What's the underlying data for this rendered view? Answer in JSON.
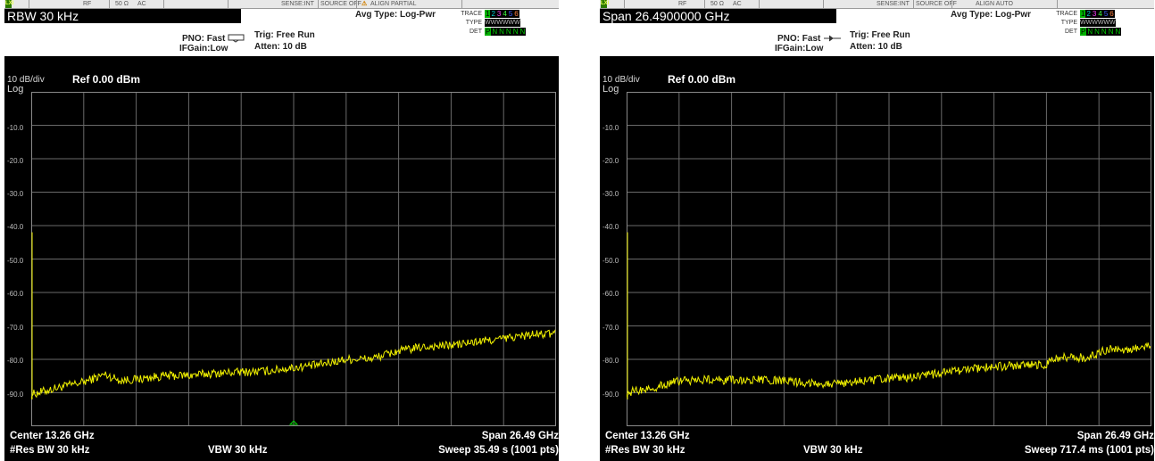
{
  "panels": [
    {
      "topbar": {
        "rf": "RF",
        "ohm": "50 Ω",
        "ac": "AC",
        "sense": "SENSE:INT",
        "source": "SOURCE OFF",
        "align": "ALIGN PARTIAL",
        "align_warning": true
      },
      "title": "RBW 30 kHz",
      "pno": "PNO: Fast",
      "ifgain": "IFGain:Low",
      "trig": "Trig: Free Run",
      "atten": "Atten: 10 dB",
      "avg_type": "Avg Type: Log-Pwr",
      "trace_label": "TRACE",
      "type_label": "TYPE",
      "det_label": "DET",
      "trace_numbers": [
        "1",
        "2",
        "3",
        "4",
        "5",
        "6"
      ],
      "type_values": "WWWWWW",
      "det_values": [
        "P",
        "N",
        "N",
        "N",
        "N",
        "N"
      ],
      "scale": "10 dB/div",
      "scale_type": "Log",
      "ref": "Ref 0.00 dBm",
      "y_labels": [
        "-10.0",
        "-20.0",
        "-30.0",
        "-40.0",
        "-50.0",
        "-60.0",
        "-70.0",
        "-80.0",
        "-90.0"
      ],
      "center": "Center 13.26 GHz",
      "span": "Span 26.49 GHz",
      "res_bw": "#Res BW 30 kHz",
      "vbw": "VBW 30 kHz",
      "sweep": "Sweep  35.49 s (1001 pts)",
      "trace_color": "#f0f000",
      "marker_shown": true,
      "chart_data": {
        "type": "line",
        "ylim": [
          -100,
          0
        ],
        "y_unit": "dBm",
        "series": [
          {
            "points": [
              [
                0,
                -90.5
              ],
              [
                0.05,
                -88.5
              ],
              [
                0.1,
                -86.8
              ],
              [
                0.14,
                -84.5
              ],
              [
                0.17,
                -86.3
              ],
              [
                0.2,
                -86
              ],
              [
                0.25,
                -85
              ],
              [
                0.3,
                -84.8
              ],
              [
                0.35,
                -84.2
              ],
              [
                0.4,
                -83.8
              ],
              [
                0.45,
                -83.5
              ],
              [
                0.5,
                -82.5
              ],
              [
                0.55,
                -81.6
              ],
              [
                0.6,
                -80
              ],
              [
                0.65,
                -79.8
              ],
              [
                0.7,
                -77.5
              ],
              [
                0.75,
                -76.3
              ],
              [
                0.8,
                -75.8
              ],
              [
                0.85,
                -74.8
              ],
              [
                0.9,
                -73.8
              ],
              [
                0.95,
                -72.7
              ],
              [
                1,
                -72.3
              ]
            ]
          }
        ]
      }
    },
    {
      "topbar": {
        "rf": "RF",
        "ohm": "50 Ω",
        "ac": "AC",
        "sense": "SENSE:INT",
        "source": "SOURCE OFF",
        "align": "ALIGN AUTO",
        "align_warning": false
      },
      "title": "Span 26.4900000 GHz",
      "pno": "PNO: Fast",
      "ifgain": "IFGain:Low",
      "trig": "Trig: Free Run",
      "atten": "Atten: 10 dB",
      "avg_type": "Avg Type: Log-Pwr",
      "trace_label": "TRACE",
      "type_label": "TYPE",
      "det_label": "DET",
      "trace_numbers": [
        "1",
        "2",
        "3",
        "4",
        "5",
        "6"
      ],
      "type_values": "WWWWWW",
      "det_values": [
        "P",
        "N",
        "N",
        "N",
        "N",
        "N"
      ],
      "scale": "10 dB/div",
      "scale_type": "Log",
      "ref": "Ref 0.00 dBm",
      "y_labels": [
        "-10.0",
        "-20.0",
        "-30.0",
        "-40.0",
        "-50.0",
        "-60.0",
        "-70.0",
        "-80.0",
        "-90.0"
      ],
      "center": "Center 13.26 GHz",
      "span": "Span 26.49 GHz",
      "res_bw": "#Res BW 30 kHz",
      "vbw": "VBW 30 kHz",
      "sweep": "Sweep  717.4 ms (1001 pts)",
      "trace_color": "#f0f000",
      "marker_shown": false,
      "chart_data": {
        "type": "line",
        "ylim": [
          -100,
          0
        ],
        "y_unit": "dBm",
        "series": [
          {
            "points": [
              [
                0,
                -90
              ],
              [
                0.05,
                -88.5
              ],
              [
                0.1,
                -86.5
              ],
              [
                0.15,
                -86
              ],
              [
                0.2,
                -86.3
              ],
              [
                0.25,
                -86.2
              ],
              [
                0.3,
                -86.5
              ],
              [
                0.35,
                -87
              ],
              [
                0.4,
                -87.3
              ],
              [
                0.45,
                -86.5
              ],
              [
                0.5,
                -85.8
              ],
              [
                0.55,
                -85.2
              ],
              [
                0.6,
                -84.2
              ],
              [
                0.65,
                -83
              ],
              [
                0.7,
                -82.2
              ],
              [
                0.75,
                -81.8
              ],
              [
                0.8,
                -81.5
              ],
              [
                0.82,
                -79.8
              ],
              [
                0.85,
                -79.3
              ],
              [
                0.88,
                -79.6
              ],
              [
                0.9,
                -78.3
              ],
              [
                0.92,
                -76.8
              ],
              [
                0.95,
                -77.6
              ],
              [
                0.98,
                -76.4
              ],
              [
                1,
                -75.9
              ]
            ]
          }
        ]
      }
    }
  ]
}
